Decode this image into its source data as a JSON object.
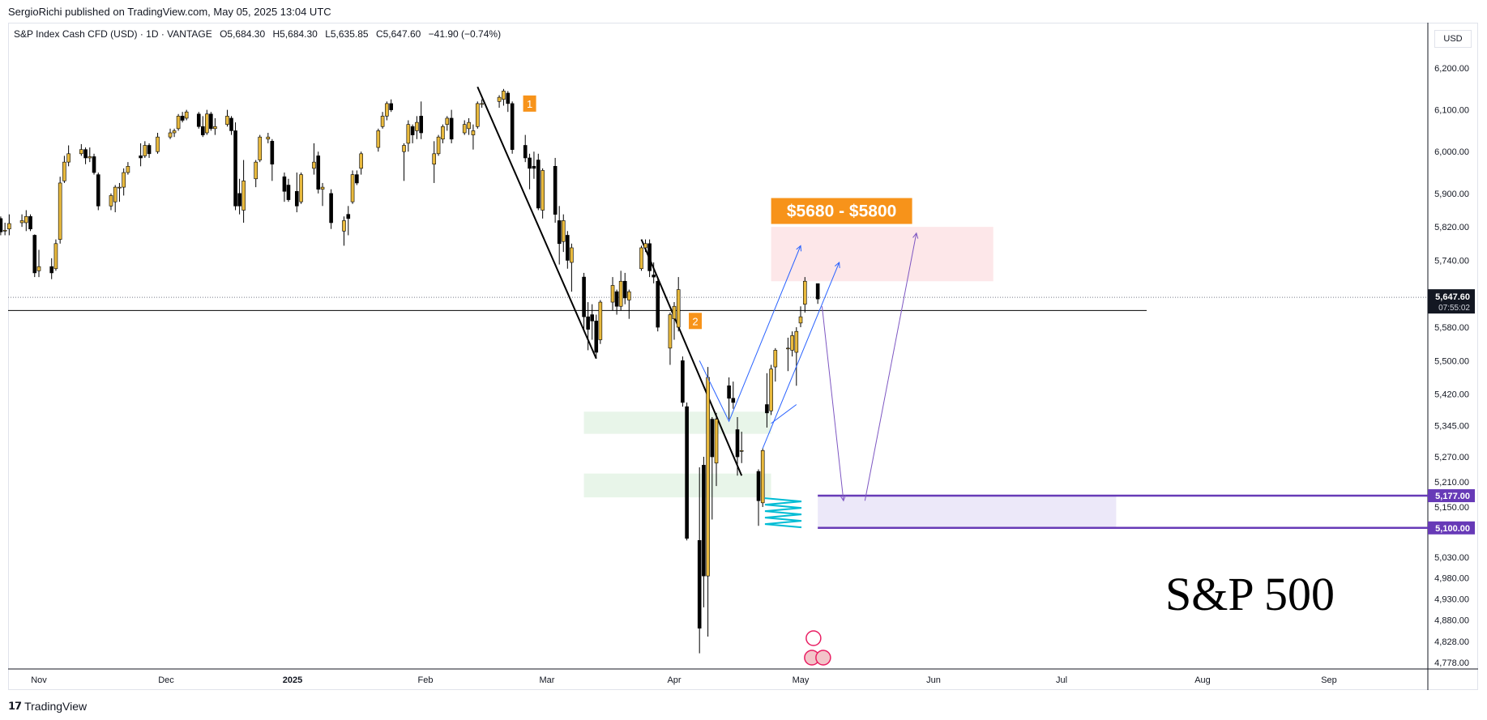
{
  "header": {
    "published_by": "SergioRichi published on TradingView.com, May 05, 2025 13:04 UTC"
  },
  "symbol_info": {
    "name": "S&P Index Cash CFD (USD) · 1D · VANTAGE",
    "open": "O5,684.30",
    "high": "H5,684.30",
    "low": "L5,635.85",
    "close": "C5,647.60",
    "change": "−41.90 (−0.74%)"
  },
  "currency_button": "USD",
  "footer": {
    "logo_text": "TradingView",
    "logo_mark": "𝟭𝟳"
  },
  "big_title": "S&P 500",
  "colors": {
    "up": "#e8b93d",
    "down": "#000000",
    "target_zone": "#fde7e9",
    "support_zone": "#ece8f9",
    "support_line": "#673ab7",
    "demand_zone": "#e8f5e9",
    "projection_blue": "#2962ff",
    "projection_purple": "#7e57c2",
    "label_orange": "#f7931a",
    "scribble": "#00bcd4"
  },
  "chart_data": {
    "type": "candlestick",
    "title": "",
    "xlabel": "",
    "ylabel": "",
    "ylim": [
      4740,
      6260
    ],
    "y_ticks": [
      {
        "value": 6200,
        "label": "6,200.00"
      },
      {
        "value": 6100,
        "label": "6,100.00"
      },
      {
        "value": 6000,
        "label": "6,000.00"
      },
      {
        "value": 5900,
        "label": "5,900.00"
      },
      {
        "value": 5820,
        "label": "5,820.00"
      },
      {
        "value": 5740,
        "label": "5,740.00"
      },
      {
        "value": 5580,
        "label": "5,580.00"
      },
      {
        "value": 5500,
        "label": "5,500.00"
      },
      {
        "value": 5420,
        "label": "5,420.00"
      },
      {
        "value": 5345,
        "label": "5,345.00"
      },
      {
        "value": 5270,
        "label": "5,270.00"
      },
      {
        "value": 5210,
        "label": "5,210.00"
      },
      {
        "value": 5150,
        "label": "5,150.00"
      },
      {
        "value": 5030,
        "label": "5,030.00"
      },
      {
        "value": 4980,
        "label": "4,980.00"
      },
      {
        "value": 4930,
        "label": "4,930.00"
      },
      {
        "value": 4880,
        "label": "4,880.00"
      },
      {
        "value": 4828,
        "label": "4,828.00"
      },
      {
        "value": 4778,
        "label": "4,778.00"
      }
    ],
    "x_ticks": [
      {
        "date": "2024-11-01",
        "label": "Nov"
      },
      {
        "date": "2024-12-01",
        "label": "Dec"
      },
      {
        "date": "2025-01-01",
        "label": "2025"
      },
      {
        "date": "2025-02-01",
        "label": "Feb"
      },
      {
        "date": "2025-03-01",
        "label": "Mar"
      },
      {
        "date": "2025-04-01",
        "label": "Apr"
      },
      {
        "date": "2025-05-01",
        "label": "May"
      },
      {
        "date": "2025-06-01",
        "label": "Jun"
      },
      {
        "date": "2025-07-01",
        "label": "Jul"
      },
      {
        "date": "2025-08-01",
        "label": "Aug"
      },
      {
        "date": "2025-09-01",
        "label": "Sep"
      }
    ],
    "last_price": {
      "value": 5647.6,
      "label": "5,647.60",
      "countdown": "07:55:02"
    },
    "price_labels": [
      {
        "value": 5177,
        "label": "5,177.00"
      },
      {
        "value": 5100,
        "label": "5,100.00"
      }
    ],
    "target_label": "$5680 - $5800",
    "marker_labels": [
      "1",
      "2"
    ],
    "horizontal_line": 5620,
    "zones": [
      {
        "kind": "target",
        "start": "2025-04-24",
        "end": "2025-06-15",
        "top": 5820,
        "bottom": 5690
      },
      {
        "kind": "support",
        "start": "2025-05-05",
        "end": "2025-07-13",
        "top": 5177,
        "bottom": 5100
      },
      {
        "kind": "demand",
        "start": "2025-03-10",
        "end": "2025-04-24",
        "top": 5378,
        "bottom": 5325
      },
      {
        "kind": "demand",
        "start": "2025-03-10",
        "end": "2025-04-24",
        "top": 5230,
        "bottom": 5173
      }
    ],
    "candles": [
      {
        "d": "2024-10-22",
        "o": 5856,
        "h": 5870,
        "l": 5835,
        "c": 5842
      },
      {
        "d": "2024-10-23",
        "o": 5840,
        "h": 5845,
        "l": 5800,
        "c": 5808
      },
      {
        "d": "2024-10-24",
        "o": 5810,
        "h": 5830,
        "l": 5800,
        "c": 5812
      },
      {
        "d": "2024-10-25",
        "o": 5815,
        "h": 5850,
        "l": 5800,
        "c": 5828
      },
      {
        "d": "2024-10-28",
        "o": 5830,
        "h": 5850,
        "l": 5820,
        "c": 5835
      },
      {
        "d": "2024-10-29",
        "o": 5830,
        "h": 5860,
        "l": 5810,
        "c": 5845
      },
      {
        "d": "2024-10-30",
        "o": 5845,
        "h": 5850,
        "l": 5810,
        "c": 5815
      },
      {
        "d": "2024-10-31",
        "o": 5800,
        "h": 5802,
        "l": 5700,
        "c": 5710
      },
      {
        "d": "2024-11-01",
        "o": 5715,
        "h": 5765,
        "l": 5700,
        "c": 5725
      },
      {
        "d": "2024-11-04",
        "o": 5725,
        "h": 5745,
        "l": 5695,
        "c": 5710
      },
      {
        "d": "2024-11-05",
        "o": 5720,
        "h": 5790,
        "l": 5715,
        "c": 5780
      },
      {
        "d": "2024-11-06",
        "o": 5790,
        "h": 5940,
        "l": 5780,
        "c": 5925
      },
      {
        "d": "2024-11-07",
        "o": 5930,
        "h": 5990,
        "l": 5925,
        "c": 5975
      },
      {
        "d": "2024-11-08",
        "o": 5975,
        "h": 6015,
        "l": 5965,
        "c": 5995
      },
      {
        "d": "2024-11-11",
        "o": 5995,
        "h": 6018,
        "l": 5990,
        "c": 6005
      },
      {
        "d": "2024-11-12",
        "o": 6005,
        "h": 6010,
        "l": 5970,
        "c": 5985
      },
      {
        "d": "2024-11-13",
        "o": 5985,
        "h": 6010,
        "l": 5975,
        "c": 5988
      },
      {
        "d": "2024-11-14",
        "o": 5988,
        "h": 5995,
        "l": 5945,
        "c": 5950
      },
      {
        "d": "2024-11-15",
        "o": 5945,
        "h": 5950,
        "l": 5860,
        "c": 5870
      },
      {
        "d": "2024-11-18",
        "o": 5870,
        "h": 5900,
        "l": 5860,
        "c": 5895
      },
      {
        "d": "2024-11-19",
        "o": 5880,
        "h": 5920,
        "l": 5855,
        "c": 5915
      },
      {
        "d": "2024-11-20",
        "o": 5915,
        "h": 5925,
        "l": 5880,
        "c": 5915
      },
      {
        "d": "2024-11-21",
        "o": 5915,
        "h": 5960,
        "l": 5895,
        "c": 5950
      },
      {
        "d": "2024-11-22",
        "o": 5950,
        "h": 5975,
        "l": 5945,
        "c": 5965
      },
      {
        "d": "2024-11-25",
        "o": 5990,
        "h": 6020,
        "l": 5965,
        "c": 5985
      },
      {
        "d": "2024-11-26",
        "o": 5990,
        "h": 6025,
        "l": 5985,
        "c": 6015
      },
      {
        "d": "2024-11-27",
        "o": 6015,
        "h": 6020,
        "l": 5985,
        "c": 5995
      },
      {
        "d": "2024-11-29",
        "o": 6000,
        "h": 6045,
        "l": 5995,
        "c": 6035
      },
      {
        "d": "2024-12-02",
        "o": 6035,
        "h": 6055,
        "l": 6030,
        "c": 6045
      },
      {
        "d": "2024-12-03",
        "o": 6045,
        "h": 6055,
        "l": 6035,
        "c": 6050
      },
      {
        "d": "2024-12-04",
        "o": 6055,
        "h": 6090,
        "l": 6050,
        "c": 6085
      },
      {
        "d": "2024-12-05",
        "o": 6085,
        "h": 6095,
        "l": 6070,
        "c": 6075
      },
      {
        "d": "2024-12-06",
        "o": 6080,
        "h": 6100,
        "l": 6075,
        "c": 6095
      },
      {
        "d": "2024-12-09",
        "o": 6090,
        "h": 6095,
        "l": 6055,
        "c": 6060
      },
      {
        "d": "2024-12-10",
        "o": 6060,
        "h": 6085,
        "l": 6035,
        "c": 6040
      },
      {
        "d": "2024-12-11",
        "o": 6045,
        "h": 6100,
        "l": 6040,
        "c": 6090
      },
      {
        "d": "2024-12-12",
        "o": 6090,
        "h": 6095,
        "l": 6050,
        "c": 6055
      },
      {
        "d": "2024-12-13",
        "o": 6055,
        "h": 6080,
        "l": 6040,
        "c": 6060
      },
      {
        "d": "2024-12-16",
        "o": 6065,
        "h": 6100,
        "l": 6060,
        "c": 6085
      },
      {
        "d": "2024-12-17",
        "o": 6080,
        "h": 6085,
        "l": 6040,
        "c": 6050
      },
      {
        "d": "2024-12-18",
        "o": 6050,
        "h": 6070,
        "l": 5860,
        "c": 5870
      },
      {
        "d": "2024-12-19",
        "o": 5900,
        "h": 5935,
        "l": 5850,
        "c": 5870
      },
      {
        "d": "2024-12-20",
        "o": 5860,
        "h": 5980,
        "l": 5830,
        "c": 5930
      },
      {
        "d": "2024-12-23",
        "o": 5935,
        "h": 5980,
        "l": 5915,
        "c": 5975
      },
      {
        "d": "2024-12-24",
        "o": 5980,
        "h": 6040,
        "l": 5975,
        "c": 6035
      },
      {
        "d": "2024-12-26",
        "o": 6030,
        "h": 6045,
        "l": 6020,
        "c": 6035
      },
      {
        "d": "2024-12-27",
        "o": 6025,
        "h": 6030,
        "l": 5930,
        "c": 5970
      },
      {
        "d": "2024-12-30",
        "o": 5940,
        "h": 5950,
        "l": 5880,
        "c": 5905
      },
      {
        "d": "2024-12-31",
        "o": 5920,
        "h": 5935,
        "l": 5880,
        "c": 5885
      },
      {
        "d": "2025-01-02",
        "o": 5905,
        "h": 5950,
        "l": 5855,
        "c": 5870
      },
      {
        "d": "2025-01-03",
        "o": 5880,
        "h": 5950,
        "l": 5875,
        "c": 5945
      },
      {
        "d": "2025-01-06",
        "o": 5960,
        "h": 6020,
        "l": 5945,
        "c": 5975
      },
      {
        "d": "2025-01-07",
        "o": 5990,
        "h": 6000,
        "l": 5900,
        "c": 5910
      },
      {
        "d": "2025-01-08",
        "o": 5910,
        "h": 5925,
        "l": 5870,
        "c": 5915
      },
      {
        "d": "2025-01-10",
        "o": 5900,
        "h": 5910,
        "l": 5815,
        "c": 5830
      },
      {
        "d": "2025-01-13",
        "o": 5810,
        "h": 5845,
        "l": 5775,
        "c": 5835
      },
      {
        "d": "2025-01-14",
        "o": 5850,
        "h": 5870,
        "l": 5800,
        "c": 5840
      },
      {
        "d": "2025-01-15",
        "o": 5880,
        "h": 5955,
        "l": 5875,
        "c": 5945
      },
      {
        "d": "2025-01-16",
        "o": 5945,
        "h": 5955,
        "l": 5920,
        "c": 5925
      },
      {
        "d": "2025-01-17",
        "o": 5960,
        "h": 6000,
        "l": 5945,
        "c": 5995
      },
      {
        "d": "2025-01-21",
        "o": 6010,
        "h": 6055,
        "l": 6000,
        "c": 6050
      },
      {
        "d": "2025-01-22",
        "o": 6060,
        "h": 6095,
        "l": 6055,
        "c": 6085
      },
      {
        "d": "2025-01-23",
        "o": 6085,
        "h": 6120,
        "l": 6075,
        "c": 6115
      },
      {
        "d": "2025-01-24",
        "o": 6115,
        "h": 6125,
        "l": 6095,
        "c": 6100
      },
      {
        "d": "2025-01-27",
        "o": 6000,
        "h": 6020,
        "l": 5930,
        "c": 6015
      },
      {
        "d": "2025-01-28",
        "o": 6020,
        "h": 6075,
        "l": 6000,
        "c": 6065
      },
      {
        "d": "2025-01-29",
        "o": 6060,
        "h": 6065,
        "l": 6020,
        "c": 6040
      },
      {
        "d": "2025-01-30",
        "o": 6050,
        "h": 6085,
        "l": 6030,
        "c": 6070
      },
      {
        "d": "2025-01-31",
        "o": 6085,
        "h": 6120,
        "l": 6030,
        "c": 6045
      },
      {
        "d": "2025-02-03",
        "o": 5970,
        "h": 6025,
        "l": 5925,
        "c": 5995
      },
      {
        "d": "2025-02-04",
        "o": 5995,
        "h": 6040,
        "l": 5990,
        "c": 6035
      },
      {
        "d": "2025-02-05",
        "o": 6030,
        "h": 6065,
        "l": 6020,
        "c": 6060
      },
      {
        "d": "2025-02-06",
        "o": 6065,
        "h": 6085,
        "l": 6050,
        "c": 6080
      },
      {
        "d": "2025-02-07",
        "o": 6080,
        "h": 6100,
        "l": 6020,
        "c": 6030
      },
      {
        "d": "2025-02-10",
        "o": 6045,
        "h": 6075,
        "l": 6040,
        "c": 6065
      },
      {
        "d": "2025-02-11",
        "o": 6055,
        "h": 6080,
        "l": 6040,
        "c": 6070
      },
      {
        "d": "2025-02-12",
        "o": 6040,
        "h": 6065,
        "l": 6005,
        "c": 6050
      },
      {
        "d": "2025-02-13",
        "o": 6060,
        "h": 6120,
        "l": 6055,
        "c": 6115
      },
      {
        "d": "2025-02-14",
        "o": 6115,
        "h": 6125,
        "l": 6105,
        "c": 6115
      },
      {
        "d": "2025-02-18",
        "o": 6120,
        "h": 6135,
        "l": 6105,
        "c": 6130
      },
      {
        "d": "2025-02-19",
        "o": 6125,
        "h": 6150,
        "l": 6110,
        "c": 6145
      },
      {
        "d": "2025-02-20",
        "o": 6140,
        "h": 6145,
        "l": 6095,
        "c": 6115
      },
      {
        "d": "2025-02-21",
        "o": 6115,
        "h": 6120,
        "l": 5995,
        "c": 6005
      },
      {
        "d": "2025-02-24",
        "o": 6015,
        "h": 6040,
        "l": 5975,
        "c": 5985
      },
      {
        "d": "2025-02-25",
        "o": 5985,
        "h": 5995,
        "l": 5910,
        "c": 5960
      },
      {
        "d": "2025-02-26",
        "o": 5965,
        "h": 6000,
        "l": 5935,
        "c": 5960
      },
      {
        "d": "2025-02-27",
        "o": 5980,
        "h": 5995,
        "l": 5860,
        "c": 5865
      },
      {
        "d": "2025-02-28",
        "o": 5860,
        "h": 5960,
        "l": 5840,
        "c": 5955
      },
      {
        "d": "2025-03-03",
        "o": 5965,
        "h": 5985,
        "l": 5830,
        "c": 5850
      },
      {
        "d": "2025-03-04",
        "o": 5835,
        "h": 5870,
        "l": 5730,
        "c": 5780
      },
      {
        "d": "2025-03-05",
        "o": 5785,
        "h": 5850,
        "l": 5760,
        "c": 5835
      },
      {
        "d": "2025-03-06",
        "o": 5800,
        "h": 5810,
        "l": 5720,
        "c": 5740
      },
      {
        "d": "2025-03-07",
        "o": 5735,
        "h": 5780,
        "l": 5665,
        "c": 5770
      },
      {
        "d": "2025-03-10",
        "o": 5700,
        "h": 5710,
        "l": 5570,
        "c": 5605
      },
      {
        "d": "2025-03-11",
        "o": 5605,
        "h": 5640,
        "l": 5525,
        "c": 5575
      },
      {
        "d": "2025-03-12",
        "o": 5610,
        "h": 5635,
        "l": 5550,
        "c": 5595
      },
      {
        "d": "2025-03-13",
        "o": 5595,
        "h": 5610,
        "l": 5505,
        "c": 5520
      },
      {
        "d": "2025-03-14",
        "o": 5550,
        "h": 5645,
        "l": 5540,
        "c": 5640
      },
      {
        "d": "2025-03-17",
        "o": 5640,
        "h": 5700,
        "l": 5620,
        "c": 5680
      },
      {
        "d": "2025-03-18",
        "o": 5665,
        "h": 5670,
        "l": 5610,
        "c": 5630
      },
      {
        "d": "2025-03-19",
        "o": 5630,
        "h": 5715,
        "l": 5620,
        "c": 5690
      },
      {
        "d": "2025-03-20",
        "o": 5690,
        "h": 5710,
        "l": 5635,
        "c": 5650
      },
      {
        "d": "2025-03-21",
        "o": 5645,
        "h": 5670,
        "l": 5600,
        "c": 5665
      },
      {
        "d": "2025-03-24",
        "o": 5720,
        "h": 5775,
        "l": 5715,
        "c": 5770
      },
      {
        "d": "2025-03-25",
        "o": 5770,
        "h": 5790,
        "l": 5760,
        "c": 5780
      },
      {
        "d": "2025-03-26",
        "o": 5780,
        "h": 5790,
        "l": 5700,
        "c": 5715
      },
      {
        "d": "2025-03-27",
        "o": 5705,
        "h": 5735,
        "l": 5685,
        "c": 5700
      },
      {
        "d": "2025-03-28",
        "o": 5690,
        "h": 5695,
        "l": 5570,
        "c": 5580
      },
      {
        "d": "2025-03-31",
        "o": 5530,
        "h": 5615,
        "l": 5490,
        "c": 5610
      },
      {
        "d": "2025-04-01",
        "o": 5600,
        "h": 5640,
        "l": 5550,
        "c": 5630
      },
      {
        "d": "2025-04-02",
        "o": 5580,
        "h": 5700,
        "l": 5570,
        "c": 5670
      },
      {
        "d": "2025-04-03",
        "o": 5500,
        "h": 5510,
        "l": 5390,
        "c": 5400
      },
      {
        "d": "2025-04-04",
        "o": 5390,
        "h": 5400,
        "l": 5070,
        "c": 5075
      },
      {
        "d": "2025-04-07",
        "o": 5070,
        "h": 5245,
        "l": 4800,
        "c": 4860
      },
      {
        "d": "2025-04-08",
        "o": 5250,
        "h": 5270,
        "l": 4910,
        "c": 4985
      },
      {
        "d": "2025-04-09",
        "o": 4985,
        "h": 5485,
        "l": 4840,
        "c": 5460
      },
      {
        "d": "2025-04-10",
        "o": 5360,
        "h": 5365,
        "l": 5120,
        "c": 5270
      },
      {
        "d": "2025-04-11",
        "o": 5255,
        "h": 5375,
        "l": 5200,
        "c": 5360
      },
      {
        "d": "2025-04-14",
        "o": 5440,
        "h": 5460,
        "l": 5360,
        "c": 5410
      },
      {
        "d": "2025-04-15",
        "o": 5410,
        "h": 5450,
        "l": 5385,
        "c": 5400
      },
      {
        "d": "2025-04-16",
        "o": 5335,
        "h": 5365,
        "l": 5225,
        "c": 5270
      },
      {
        "d": "2025-04-17",
        "o": 5285,
        "h": 5330,
        "l": 5255,
        "c": 5285
      },
      {
        "d": "2025-04-21",
        "o": 5235,
        "h": 5240,
        "l": 5105,
        "c": 5165
      },
      {
        "d": "2025-04-22",
        "o": 5160,
        "h": 5290,
        "l": 5150,
        "c": 5285
      },
      {
        "d": "2025-04-23",
        "o": 5395,
        "h": 5470,
        "l": 5340,
        "c": 5375
      },
      {
        "d": "2025-04-24",
        "o": 5380,
        "h": 5490,
        "l": 5370,
        "c": 5480
      },
      {
        "d": "2025-04-25",
        "o": 5485,
        "h": 5530,
        "l": 5450,
        "c": 5525
      },
      {
        "d": "2025-04-28",
        "o": 5530,
        "h": 5555,
        "l": 5475,
        "c": 5530
      },
      {
        "d": "2025-04-29",
        "o": 5525,
        "h": 5570,
        "l": 5510,
        "c": 5560
      },
      {
        "d": "2025-04-30",
        "o": 5520,
        "h": 5580,
        "l": 5440,
        "c": 5570
      },
      {
        "d": "2025-05-01",
        "o": 5590,
        "h": 5630,
        "l": 5580,
        "c": 5605
      },
      {
        "d": "2025-05-02",
        "o": 5635,
        "h": 5700,
        "l": 5615,
        "c": 5690
      },
      {
        "d": "2025-05-05",
        "o": 5684.3,
        "h": 5684.3,
        "l": 5635.85,
        "c": 5647.6
      }
    ]
  }
}
